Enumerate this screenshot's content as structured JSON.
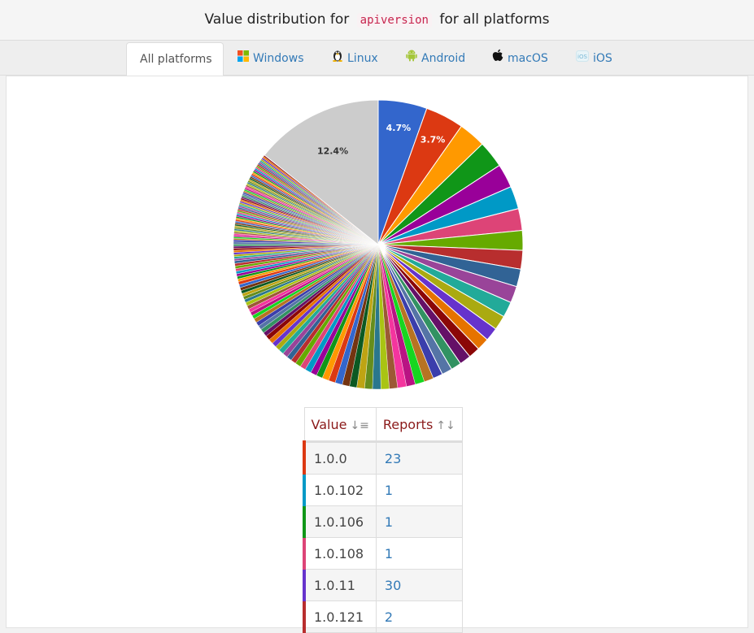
{
  "header": {
    "prefix": "Value distribution for",
    "property": "apiversion",
    "suffix": "for all platforms"
  },
  "tabs": [
    {
      "label": "All platforms",
      "icon": "none"
    },
    {
      "label": "Windows",
      "icon": "windows-icon"
    },
    {
      "label": "Linux",
      "icon": "linux-icon"
    },
    {
      "label": "Android",
      "icon": "android-icon"
    },
    {
      "label": "macOS",
      "icon": "apple-icon"
    },
    {
      "label": "iOS",
      "icon": "ios-icon"
    }
  ],
  "table": {
    "headers": [
      "Value",
      "Reports"
    ],
    "rows": [
      {
        "value": "1.0.0",
        "reports": "23",
        "color": "#dc3912"
      },
      {
        "value": "1.0.102",
        "reports": "1",
        "color": "#0099c6"
      },
      {
        "value": "1.0.106",
        "reports": "1",
        "color": "#109618"
      },
      {
        "value": "1.0.108",
        "reports": "1",
        "color": "#dd4477"
      },
      {
        "value": "1.0.11",
        "reports": "30",
        "color": "#6633cc"
      },
      {
        "value": "1.0.121",
        "reports": "2",
        "color": "#b82e2e"
      }
    ]
  },
  "chart_data": {
    "type": "pie",
    "slice_labels": [
      "4.7%",
      "3.7%",
      "12.4%"
    ],
    "labeled_slices": [
      {
        "label": "4.7%",
        "value": 4.7,
        "color": "#3366cc"
      },
      {
        "label": "3.7%",
        "value": 3.7,
        "color": "#dc3912"
      },
      {
        "label": "12.4%",
        "value": 12.4,
        "color": "#cccccc"
      }
    ],
    "slices": [
      4.7,
      3.7,
      2.6,
      2.6,
      2.3,
      2.2,
      2.1,
      1.9,
      1.8,
      1.7,
      1.6,
      1.5,
      1.4,
      1.3,
      1.2,
      1.1,
      1.1,
      1.0,
      1.0,
      0.95,
      0.9,
      0.9,
      0.85,
      0.85,
      0.8,
      0.8,
      0.8,
      0.75,
      0.75,
      0.7,
      0.7,
      0.7,
      0.65,
      0.65,
      0.6,
      0.6,
      0.6,
      0.55,
      0.55,
      0.5,
      0.5,
      0.5,
      0.5,
      0.45,
      0.45,
      0.45,
      0.45,
      0.4,
      0.4,
      0.4,
      0.4,
      0.4,
      0.35,
      0.35,
      0.35,
      0.35,
      0.35,
      0.3,
      0.3,
      0.3,
      0.3,
      0.3,
      0.3,
      0.3,
      0.25,
      0.25,
      0.25,
      0.25,
      0.25,
      0.25,
      0.25,
      0.25,
      0.2,
      0.2,
      0.2,
      0.2,
      0.2,
      0.2,
      0.2,
      0.2,
      0.2,
      0.2,
      0.15,
      0.15,
      0.15,
      0.15,
      0.15,
      0.15,
      0.15,
      0.15,
      0.15,
      0.15,
      0.15,
      0.15,
      0.15,
      0.15,
      0.15,
      0.15,
      0.15,
      0.15,
      0.15,
      0.15,
      0.15,
      0.15,
      0.15,
      0.15,
      0.15,
      0.15,
      0.15,
      0.15,
      0.15,
      0.15,
      0.15,
      0.15,
      0.15,
      0.15,
      0.15,
      0.15,
      0.15,
      0.15,
      0.15,
      0.15,
      0.15,
      0.15,
      0.15,
      0.15,
      0.15,
      0.15,
      0.15,
      0.15,
      0.15,
      0.15,
      0.15,
      0.15,
      0.15,
      0.15,
      0.15,
      0.15,
      0.15,
      0.15,
      12.4
    ],
    "palette": [
      "#3366cc",
      "#dc3912",
      "#ff9900",
      "#109618",
      "#990099",
      "#0099c6",
      "#dd4477",
      "#66aa00",
      "#b82e2e",
      "#316395",
      "#994499",
      "#22aa99",
      "#aaaa11",
      "#6633cc",
      "#e67300",
      "#8b0707",
      "#651067",
      "#329262",
      "#5574a6",
      "#3b3eac",
      "#b77322",
      "#16d620",
      "#b91383",
      "#f4359e",
      "#9c5935",
      "#a9c413",
      "#2a778d",
      "#668d1c",
      "#bea413",
      "#0c5922",
      "#743411"
    ],
    "last_slice_color": "#cccccc"
  }
}
